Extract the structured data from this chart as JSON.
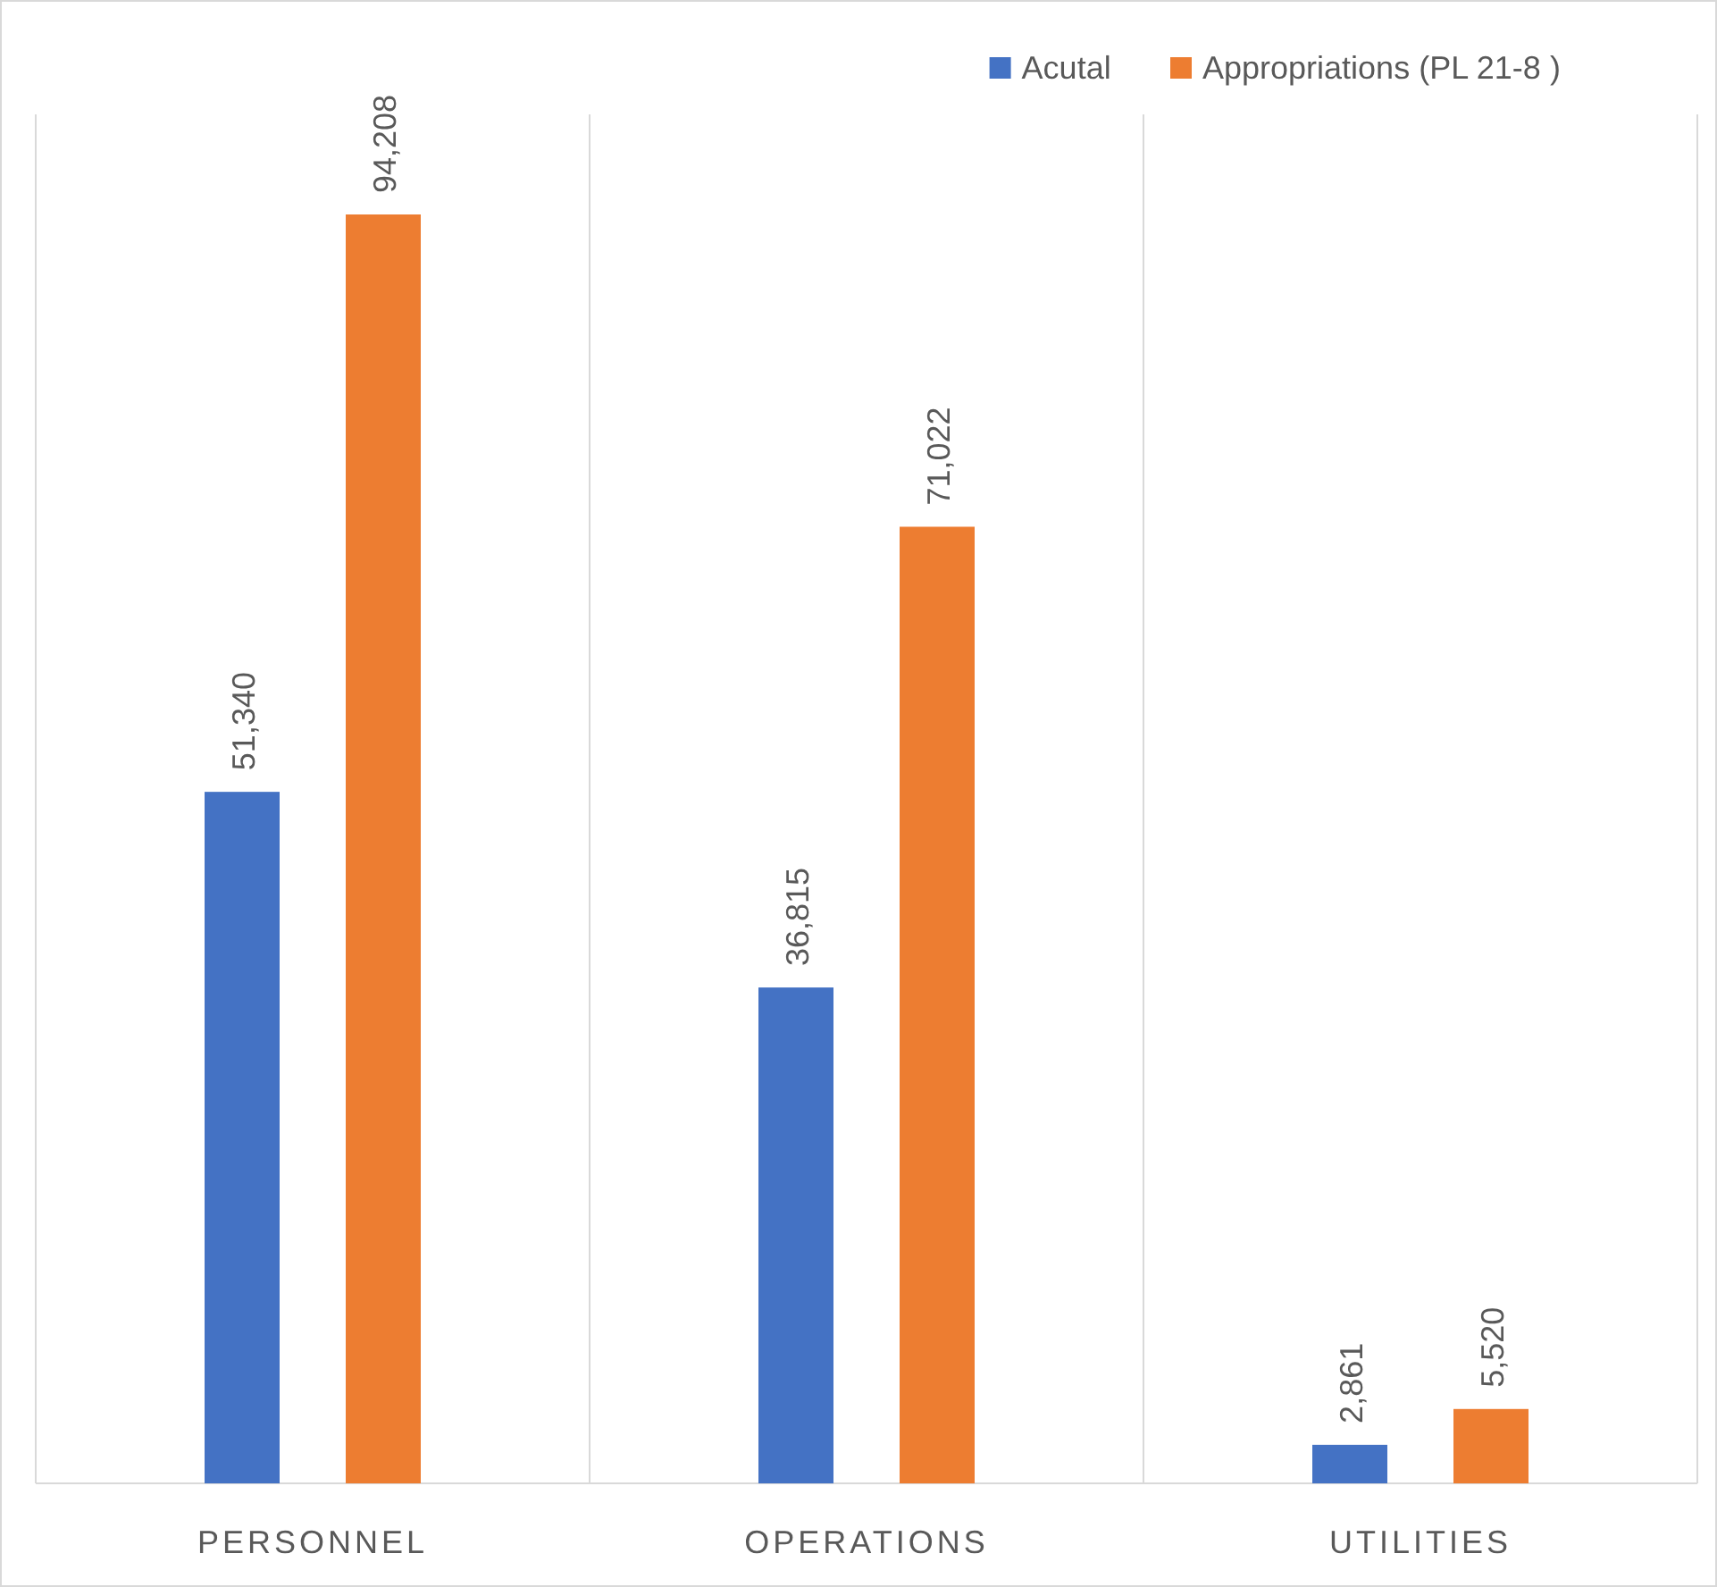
{
  "chart_data": {
    "type": "bar",
    "categories": [
      "PERSONNEL",
      "OPERATIONS",
      "UTILITIES"
    ],
    "series": [
      {
        "name": "Acutal",
        "color": "#4472c4",
        "values": [
          51340,
          36815,
          2861
        ],
        "value_labels": [
          "51,340",
          "36,815",
          "2,861"
        ]
      },
      {
        "name": "Appropriations (PL 21-8 )",
        "color": "#ed7d31",
        "values": [
          94208,
          71022,
          5520
        ],
        "value_labels": [
          "94,208",
          "71,022",
          "5,520"
        ]
      }
    ],
    "grid": "x",
    "legend": "top right",
    "tick_labels": "x"
  }
}
